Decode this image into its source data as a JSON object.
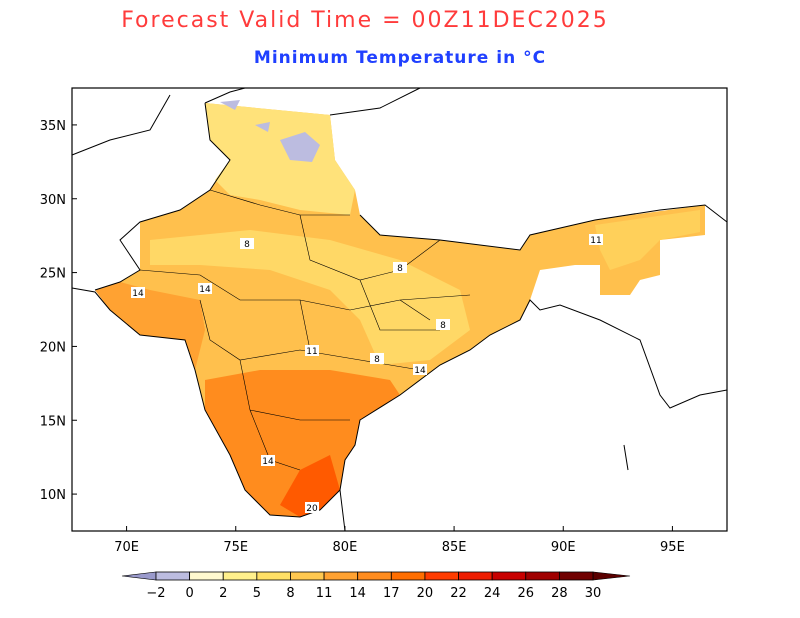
{
  "title": "Forecast Valid Time = 00Z11DEC2025",
  "subtitle": "Minimum Temperature in °C",
  "map": {
    "lon_range": [
      67.5,
      97.5
    ],
    "lat_range": [
      7.5,
      37.5
    ],
    "lon_ticks": [
      "70E",
      "75E",
      "80E",
      "85E",
      "90E",
      "95E"
    ],
    "lat_ticks": [
      "10N",
      "15N",
      "20N",
      "25N",
      "30N",
      "35N"
    ],
    "contour_labels": [
      "8",
      "14",
      "14",
      "8",
      "8",
      "8",
      "11",
      "14",
      "14",
      "20",
      "11"
    ]
  },
  "legend": {
    "labels": [
      "-2",
      "0",
      "2",
      "5",
      "8",
      "11",
      "14",
      "17",
      "20",
      "22",
      "24",
      "26",
      "28",
      "30"
    ],
    "colors": [
      "#bcbce0",
      "#fff9cf",
      "#fff08c",
      "#ffe066",
      "#ffc850",
      "#ffa232",
      "#ff8c1e",
      "#ff6e00",
      "#ff3c00",
      "#ee1c00",
      "#c80000",
      "#a00000",
      "#700000"
    ],
    "under_color": "#9a9acc",
    "over_color": "#5a0000"
  }
}
